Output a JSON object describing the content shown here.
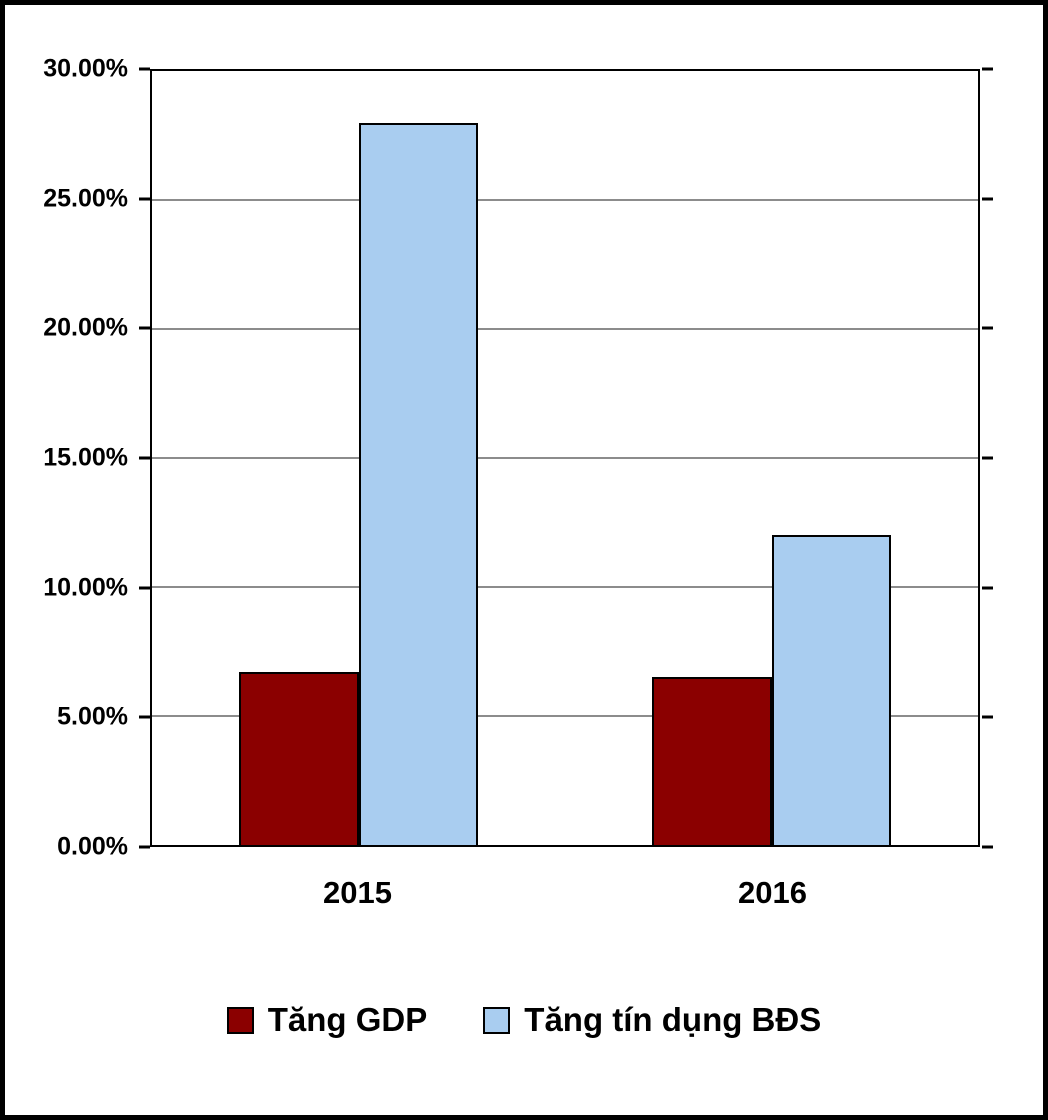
{
  "chart_data": {
    "type": "bar",
    "title": "",
    "categories": [
      "2015",
      "2016"
    ],
    "series": [
      {
        "name": "Tăng GDP",
        "color": "#8B0000",
        "values": [
          6.7,
          6.5
        ]
      },
      {
        "name": "Tăng tín dụng BĐS",
        "color": "#A9CDF0",
        "values": [
          28.0,
          12.0
        ]
      }
    ],
    "xlabel": "",
    "ylabel": "",
    "ylim": [
      0,
      30
    ],
    "ytick_step": 5,
    "ytick_labels": [
      "0.00%",
      "5.00%",
      "10.00%",
      "15.00%",
      "20.00%",
      "25.00%",
      "30.00%"
    ],
    "grid": true,
    "legend_position": "bottom",
    "colors": {
      "axis": "#000000",
      "gridline": "#8c8c8c",
      "background": "#ffffff"
    }
  }
}
